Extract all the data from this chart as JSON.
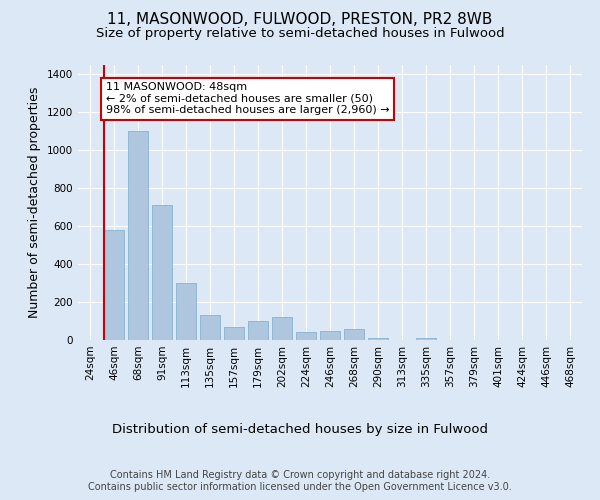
{
  "title": "11, MASONWOOD, FULWOOD, PRESTON, PR2 8WB",
  "subtitle": "Size of property relative to semi-detached houses in Fulwood",
  "xlabel": "Distribution of semi-detached houses by size in Fulwood",
  "ylabel": "Number of semi-detached properties",
  "categories": [
    "24sqm",
    "46sqm",
    "68sqm",
    "91sqm",
    "113sqm",
    "135sqm",
    "157sqm",
    "179sqm",
    "202sqm",
    "224sqm",
    "246sqm",
    "268sqm",
    "290sqm",
    "313sqm",
    "335sqm",
    "357sqm",
    "379sqm",
    "401sqm",
    "424sqm",
    "446sqm",
    "468sqm"
  ],
  "values": [
    0,
    580,
    1100,
    710,
    300,
    130,
    70,
    100,
    120,
    40,
    50,
    60,
    10,
    0,
    10,
    0,
    0,
    0,
    0,
    0,
    0
  ],
  "bar_color": "#aec6de",
  "bar_edgecolor": "#7aaacb",
  "highlight_index": 1,
  "highlight_line_color": "#cc0000",
  "annotation_text": "11 MASONWOOD: 48sqm\n← 2% of semi-detached houses are smaller (50)\n98% of semi-detached houses are larger (2,960) →",
  "annotation_box_color": "#ffffff",
  "annotation_box_edgecolor": "#cc0000",
  "ylim": [
    0,
    1450
  ],
  "yticks": [
    0,
    200,
    400,
    600,
    800,
    1000,
    1200,
    1400
  ],
  "footer_text": "Contains HM Land Registry data © Crown copyright and database right 2024.\nContains public sector information licensed under the Open Government Licence v3.0.",
  "background_color": "#dce8f5",
  "plot_background_color": "#dce8f5",
  "title_fontsize": 11,
  "subtitle_fontsize": 9.5,
  "axis_label_fontsize": 9,
  "tick_fontsize": 7.5,
  "footer_fontsize": 7,
  "annotation_fontsize": 8
}
